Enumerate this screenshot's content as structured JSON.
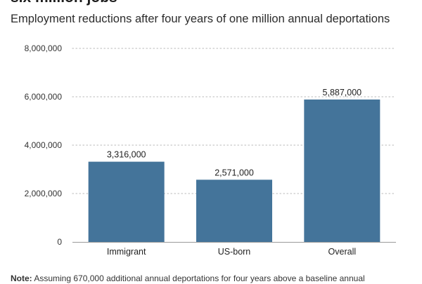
{
  "header": {
    "title": "six million jobs",
    "subtitle": "Employment reductions after four years of one million annual deportations"
  },
  "footer": {
    "note_label": "Note:",
    "note_text": " Assuming 670,000 additional annual deportations for four years above a baseline annual"
  },
  "chart_data": {
    "type": "bar",
    "title": "six million jobs",
    "subtitle": "Employment reductions after four years of one million annual deportations",
    "categories": [
      "Immigrant",
      "US-born",
      "Overall"
    ],
    "values": [
      3316000,
      2571000,
      5887000
    ],
    "data_labels": [
      "3,316,000",
      "2,571,000",
      "5,887,000"
    ],
    "yticks": [
      0,
      2000000,
      4000000,
      6000000,
      8000000
    ],
    "ytick_labels": [
      "0",
      "2,000,000",
      "4,000,000",
      "6,000,000",
      "8,000,000"
    ],
    "ylim": [
      0,
      8000000
    ],
    "xlabel": "",
    "ylabel": "",
    "grid": true,
    "bar_color": "#44749a",
    "grid_color": "#c8c8c8",
    "axis_color": "#9a9a9a"
  }
}
